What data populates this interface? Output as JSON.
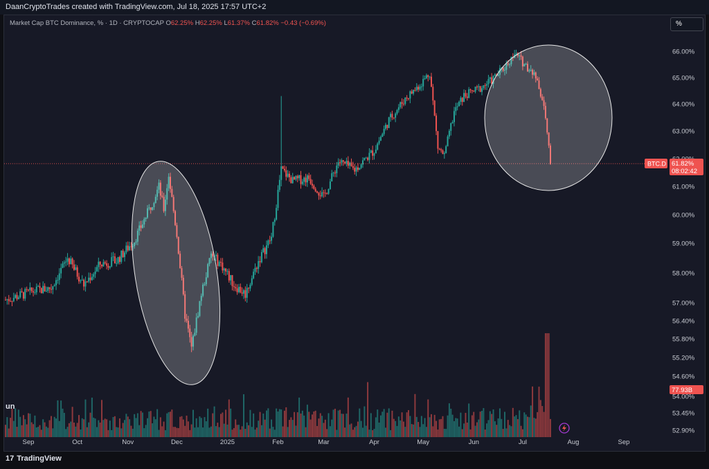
{
  "header": {
    "credit": "DaanCryptoTrades created with TradingView.com, Jul 18, 2025 17:57 UTC+2"
  },
  "legend": {
    "title": "Market Cap BTC Dominance, % · 1D · CRYPTOCAP",
    "open_label": "O",
    "open": "62.25%",
    "high_label": "H",
    "high": "62.25%",
    "low_label": "L",
    "low": "61.37%",
    "close_label": "C",
    "close": "61.82%",
    "change": "−0.43 (−0.69%)"
  },
  "unit_button": "%",
  "price_axis": [
    "66.00%",
    "65.00%",
    "64.00%",
    "63.00%",
    "62.00%",
    "61.00%",
    "60.00%",
    "59.00%",
    "58.00%",
    "57.00%",
    "56.40%",
    "55.80%",
    "55.20%",
    "54.60%",
    "54.00%",
    "53.45%",
    "52.90%"
  ],
  "time_axis": [
    "Sep",
    "Oct",
    "Nov",
    "Dec",
    "2025",
    "Feb",
    "Mar",
    "Apr",
    "May",
    "Jun",
    "Jul",
    "Aug",
    "Sep"
  ],
  "symbol_tag": "BTC.D",
  "last_price_tag": "61.82%",
  "countdown_tag": "08:02:42",
  "volume_tag": "77.93B",
  "volume_indicator_label": "un",
  "footer": {
    "logo": "TradingView",
    "logo_mark": "17"
  },
  "colors": {
    "up": "#26a69a",
    "down": "#ef5350",
    "background": "#171926",
    "ellipse": "#ffffff"
  },
  "chart_data": {
    "type": "candlestick",
    "title": "Market Cap BTC Dominance, % · 1D · CRYPTOCAP",
    "ylim": [
      52.9,
      66.4
    ],
    "x": [
      "2024-08-18",
      "2024-09-01",
      "2024-10-01",
      "2024-11-01",
      "2024-12-01",
      "2025-01-01",
      "2025-02-01",
      "2025-03-01",
      "2025-04-01",
      "2025-05-01",
      "2025-06-01",
      "2025-07-01",
      "2025-07-18"
    ],
    "close_path": [
      [
        "2024-08-18",
        57.1
      ],
      [
        "2024-09-05",
        57.4
      ],
      [
        "2024-09-15",
        57.5
      ],
      [
        "2024-09-25",
        58.5
      ],
      [
        "2024-10-05",
        57.6
      ],
      [
        "2024-10-15",
        58.3
      ],
      [
        "2024-10-25",
        58.4
      ],
      [
        "2024-11-05",
        59.1
      ],
      [
        "2024-11-15",
        60.3
      ],
      [
        "2024-11-20",
        61.0
      ],
      [
        "2024-11-23",
        60.2
      ],
      [
        "2024-11-26",
        61.4
      ],
      [
        "2024-12-01",
        59.3
      ],
      [
        "2024-12-06",
        56.6
      ],
      [
        "2024-12-10",
        55.5
      ],
      [
        "2024-12-16",
        57.3
      ],
      [
        "2024-12-22",
        58.6
      ],
      [
        "2024-12-28",
        58.3
      ],
      [
        "2025-01-05",
        57.6
      ],
      [
        "2025-01-12",
        57.3
      ],
      [
        "2025-01-20",
        58.4
      ],
      [
        "2025-01-28",
        59.2
      ],
      [
        "2025-02-03",
        61.6
      ],
      [
        "2025-02-10",
        61.2
      ],
      [
        "2025-02-20",
        61.3
      ],
      [
        "2025-03-01",
        60.6
      ],
      [
        "2025-03-10",
        61.9
      ],
      [
        "2025-03-20",
        61.6
      ],
      [
        "2025-04-01",
        62.3
      ],
      [
        "2025-04-10",
        63.4
      ],
      [
        "2025-04-20",
        64.2
      ],
      [
        "2025-04-30",
        64.8
      ],
      [
        "2025-05-05",
        65.2
      ],
      [
        "2025-05-10",
        62.4
      ],
      [
        "2025-05-14",
        62.1
      ],
      [
        "2025-05-20",
        63.7
      ],
      [
        "2025-05-26",
        64.3
      ],
      [
        "2025-06-05",
        64.6
      ],
      [
        "2025-06-12",
        64.9
      ],
      [
        "2025-06-20",
        65.4
      ],
      [
        "2025-06-26",
        65.9
      ],
      [
        "2025-07-04",
        65.4
      ],
      [
        "2025-07-10",
        64.9
      ],
      [
        "2025-07-14",
        63.9
      ],
      [
        "2025-07-18",
        61.8
      ]
    ],
    "volume_peak_date": "2025-07-16"
  }
}
